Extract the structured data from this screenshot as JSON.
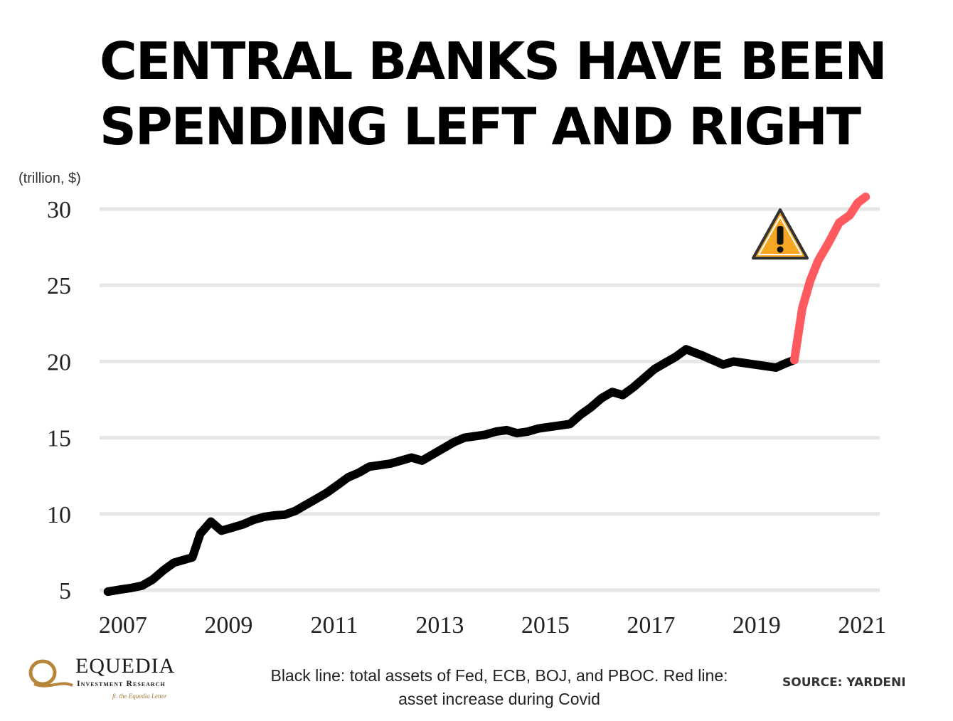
{
  "title_lines": [
    "CENTRAL BANKS HAVE BEEN",
    "SPENDING LEFT AND RIGHT"
  ],
  "unit_label": "(trillion, $)",
  "caption_lines": [
    "Black line: total assets of Fed, ECB, BOJ, and PBOC. Red line:",
    "asset increase during Covid"
  ],
  "source": "SOURCE:  YARDENI",
  "logo": {
    "name": "EQUEDIA",
    "subtitle": "Investment Research",
    "tagline": "ft. the Equedia Letter"
  },
  "icons": {
    "warning": "warning-triangle-icon"
  },
  "colors": {
    "pre_covid": "#000000",
    "covid": "#ff5a5f",
    "gridline": "#e6e6e6",
    "warning_fill": "#f5a623"
  },
  "chart_data": {
    "type": "line",
    "xlabel": "",
    "ylabel": "(trillion, $)",
    "xlim": [
      2006.8,
      2021.4
    ],
    "ylim": [
      5,
      30
    ],
    "y_ticks": [
      5,
      10,
      15,
      20,
      25,
      30
    ],
    "x_ticks": [
      2007,
      2009,
      2011,
      2013,
      2015,
      2017,
      2019,
      2021
    ],
    "grid": "horizontal",
    "series": [
      {
        "key": "total_assets",
        "x": [
          2006.85,
          2007.1,
          2007.3,
          2007.5,
          2007.7,
          2007.9,
          2008.1,
          2008.3,
          2008.45,
          2008.6,
          2008.8,
          2009.0,
          2009.2,
          2009.4,
          2009.6,
          2009.8,
          2010.0,
          2010.2,
          2010.4,
          2010.6,
          2010.8,
          2011.0,
          2011.2,
          2011.4,
          2011.6,
          2011.8,
          2012.0,
          2012.2,
          2012.4,
          2012.6,
          2012.8,
          2013.0,
          2013.2,
          2013.4,
          2013.6,
          2013.8,
          2014.0,
          2014.2,
          2014.4,
          2014.6,
          2014.8,
          2015.0,
          2015.2,
          2015.4,
          2015.6,
          2015.8,
          2016.0,
          2016.2,
          2016.4,
          2016.6,
          2016.8,
          2017.0,
          2017.2,
          2017.4,
          2017.6,
          2017.8,
          2017.95,
          2018.1,
          2018.3,
          2018.5,
          2018.7,
          2018.9,
          2019.1,
          2019.3,
          2019.5,
          2019.7,
          2019.85
        ],
        "values": [
          4.9,
          5.05,
          5.15,
          5.3,
          5.7,
          6.3,
          6.8,
          7.0,
          7.15,
          8.7,
          9.5,
          8.9,
          9.1,
          9.3,
          9.6,
          9.8,
          9.9,
          9.95,
          10.2,
          10.6,
          11.0,
          11.4,
          11.9,
          12.4,
          12.7,
          13.1,
          13.2,
          13.3,
          13.5,
          13.7,
          13.5,
          13.9,
          14.3,
          14.7,
          15.0,
          15.1,
          15.2,
          15.4,
          15.5,
          15.3,
          15.4,
          15.6,
          15.7,
          15.8,
          15.9,
          16.5,
          17.0,
          17.6,
          18.0,
          17.8,
          18.3,
          18.9,
          19.5,
          19.9,
          20.3,
          20.8,
          20.6,
          20.4,
          20.1,
          19.8,
          20.0,
          19.9,
          19.8,
          19.7,
          19.6,
          19.9,
          20.1
        ]
      },
      {
        "key": "covid_increase",
        "x": [
          2019.85,
          2020.0,
          2020.15,
          2020.3,
          2020.5,
          2020.7,
          2020.9,
          2021.05,
          2021.2
        ],
        "values": [
          20.1,
          23.5,
          25.3,
          26.6,
          27.8,
          29.1,
          29.6,
          30.4,
          30.8
        ]
      }
    ]
  }
}
